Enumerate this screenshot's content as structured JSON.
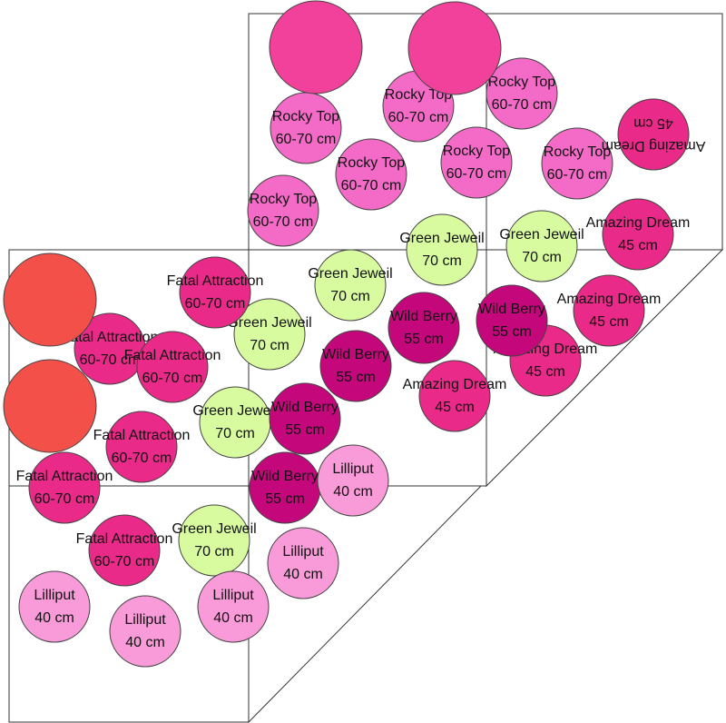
{
  "plants": [
    {
      "name": "Rocky Top",
      "size": "60-70 cm"
    },
    {
      "name": "Rocky Top",
      "size": "60-70 cm"
    },
    {
      "name": "Rocky Top",
      "size": "60-70 cm"
    },
    {
      "name": "Rocky Top",
      "size": "60-70 cm"
    },
    {
      "name": "Rocky Top",
      "size": "60-70 cm"
    },
    {
      "name": "Rocky Top",
      "size": "60-70 cm"
    },
    {
      "name": "Rocky Top",
      "size": "60-70 cm"
    },
    {
      "name": "Amazing Dream",
      "size": "45 cm"
    },
    {
      "name": "Amazing Dream",
      "size": "45 cm"
    },
    {
      "name": "Amazing Dream",
      "size": "45 cm"
    },
    {
      "name": "Amazing Dream",
      "size": "45 cm"
    },
    {
      "name": "Amazing Dream",
      "size": "45 cm"
    },
    {
      "name": "Green Jeweil",
      "size": "70 cm"
    },
    {
      "name": "Green Jeweil",
      "size": "70 cm"
    },
    {
      "name": "Green Jeweil",
      "size": "70 cm"
    },
    {
      "name": "Green Jeweil",
      "size": "70 cm"
    },
    {
      "name": "Green Jeweil",
      "size": "70 cm"
    },
    {
      "name": "Green Jeweil",
      "size": "70 cm"
    },
    {
      "name": "Wild Berry",
      "size": "55 cm"
    },
    {
      "name": "Wild Berry",
      "size": "55 cm"
    },
    {
      "name": "Wild Berry",
      "size": "55 cm"
    },
    {
      "name": "Wild Berry",
      "size": "55 cm"
    },
    {
      "name": "Wild Berry",
      "size": "55 cm"
    },
    {
      "name": "Fatal Attraction",
      "size": "60-70 cm"
    },
    {
      "name": "Fatal Attraction",
      "size": "60-70 cm"
    },
    {
      "name": "Fatal Attraction",
      "size": "60-70 cm"
    },
    {
      "name": "Fatal Attraction",
      "size": "60-70 cm"
    },
    {
      "name": "Fatal Attraction",
      "size": "60-70 cm"
    },
    {
      "name": "Fatal Attraction",
      "size": "60-70 cm"
    },
    {
      "name": "Lilliput",
      "size": "40 cm"
    },
    {
      "name": "Lilliput",
      "size": "40 cm"
    },
    {
      "name": "Lilliput",
      "size": "40 cm"
    },
    {
      "name": "Lilliput",
      "size": "40 cm"
    },
    {
      "name": "Lilliput",
      "size": "40 cm"
    }
  ]
}
